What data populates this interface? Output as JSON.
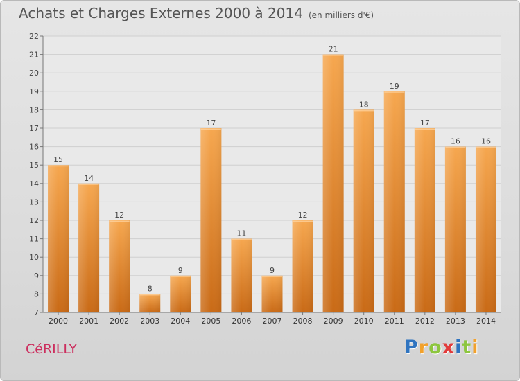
{
  "header": {
    "title": "Achats et Charges Externes 2000 à 2014",
    "unit": "(en milliers d'€)"
  },
  "footer": {
    "commune": "CéRILLY",
    "brand_letters": [
      "P",
      "r",
      "o",
      "x",
      "i",
      "t",
      "i"
    ],
    "brand_colors": [
      "#2f74c0",
      "#f2a12b",
      "#8dc63f",
      "#e23b3b",
      "#2f74c0",
      "#8dc63f",
      "#f2a12b"
    ]
  },
  "chart_data": {
    "type": "bar",
    "categories": [
      "2000",
      "2001",
      "2002",
      "2003",
      "2004",
      "2005",
      "2006",
      "2007",
      "2008",
      "2009",
      "2010",
      "2011",
      "2012",
      "2013",
      "2014"
    ],
    "values": [
      15,
      14,
      12,
      8,
      9,
      17,
      11,
      9,
      12,
      21,
      18,
      19,
      17,
      16,
      16
    ],
    "title": "Achats et Charges Externes 2000 à 2014",
    "ylim": [
      7,
      22
    ],
    "yticks": [
      "7",
      "8",
      "9",
      "10",
      "11",
      "12",
      "13",
      "14",
      "15",
      "16",
      "17",
      "18",
      "19",
      "20",
      "21",
      "22"
    ],
    "grid": true,
    "bar_color": "#f09a3c",
    "bar_color_dark": "#c96a16"
  }
}
